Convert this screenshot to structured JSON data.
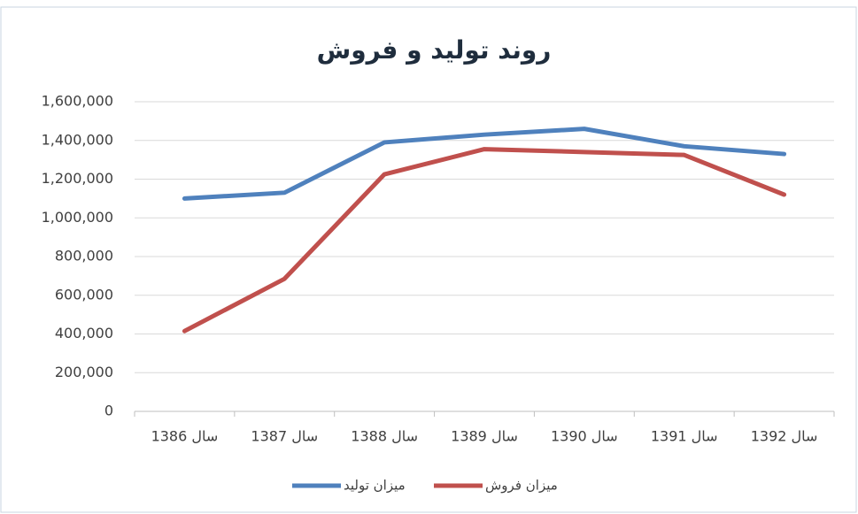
{
  "chart_data": {
    "type": "line",
    "title": "روند تولید و فروش",
    "categories": [
      "سال 1386",
      "سال 1387",
      "سال 1388",
      "سال 1389",
      "سال 1390",
      "سال 1391",
      "سال 1392"
    ],
    "series": [
      {
        "name": "میزان تولید",
        "color": "#4f81bd",
        "values": [
          1100000,
          1130000,
          1390000,
          1430000,
          1460000,
          1370000,
          1330000
        ]
      },
      {
        "name": "میزان فروش",
        "color": "#c0504d",
        "values": [
          415000,
          685000,
          1225000,
          1355000,
          1340000,
          1325000,
          1120000
        ]
      }
    ],
    "ylim": [
      0,
      1600000
    ],
    "yticks": [
      0,
      {
        "value": 200000,
        "label": "200,000"
      },
      {
        "value": 400000,
        "label": "400,000"
      },
      {
        "value": 600000,
        "label": "600,000"
      },
      {
        "value": 800000,
        "label": "800,000"
      },
      {
        "value": 1000000,
        "label": "1,000,000"
      },
      {
        "value": 1200000,
        "label": "1,200,000"
      },
      {
        "value": 1400000,
        "label": "1,400,000"
      },
      {
        "value": 1600000,
        "label": "1,600,000"
      }
    ],
    "grid": true,
    "legend": "bottom"
  }
}
